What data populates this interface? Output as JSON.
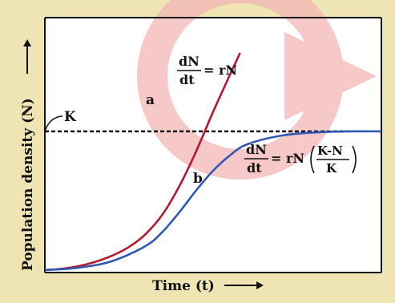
{
  "chart_data": {
    "type": "line",
    "xlabel": "Time (t)",
    "ylabel": "Population density (N)",
    "carrying_capacity_label": "K",
    "xlim": [
      0,
      10
    ],
    "ylim": [
      0,
      10
    ],
    "carrying_capacity": 6.4,
    "series": [
      {
        "name": "a",
        "color": "#b5192f",
        "equation": {
          "numerator": "dN",
          "denominator": "dt",
          "rhs": "= rN"
        },
        "x": [
          0,
          0.5,
          1,
          1.5,
          2,
          2.5,
          3,
          3.5,
          4,
          4.5,
          5,
          5.5,
          5.8
        ],
        "y": [
          0.04,
          0.1,
          0.22,
          0.42,
          0.7,
          1.1,
          1.7,
          2.6,
          3.9,
          5.5,
          7.3,
          9.0,
          10.0
        ]
      },
      {
        "name": "b",
        "color": "#2f58b3",
        "equation": {
          "numerator": "dN",
          "denominator": "dt",
          "rhs": "= rN",
          "factor_top": "K-N",
          "factor_bottom": "K"
        },
        "x": [
          0,
          1,
          2,
          3,
          3.5,
          4,
          4.5,
          5,
          5.5,
          6,
          7,
          8,
          9,
          10
        ],
        "y": [
          0.04,
          0.15,
          0.45,
          1.15,
          1.8,
          2.7,
          3.7,
          4.6,
          5.3,
          5.8,
          6.2,
          6.35,
          6.4,
          6.4
        ]
      }
    ]
  },
  "colors": {
    "background": "#eee4b4",
    "plot_area": "#ffffff",
    "watermark": "#f3b6b6",
    "dashed_line": "#111111"
  }
}
